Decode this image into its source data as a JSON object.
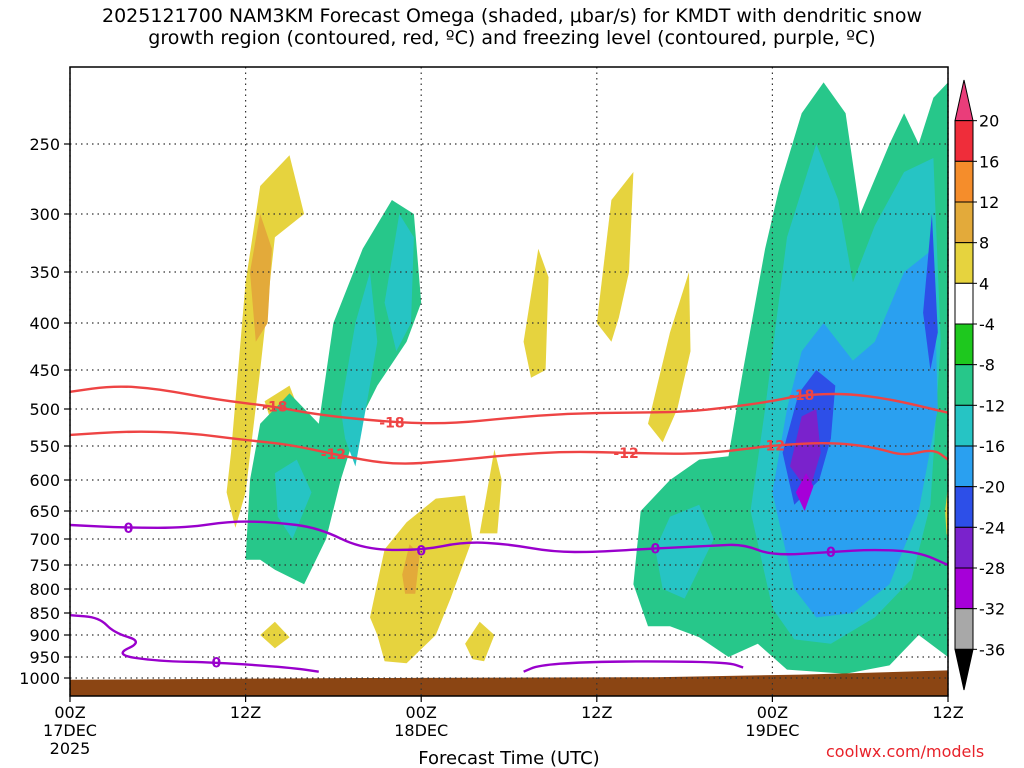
{
  "title_line1": "2025121700 NAM3KM Forecast Omega (shaded, μbar/s) for KMDT with dendritic snow",
  "title_line2": "growth region (contoured, red, ºC) and freezing level (contoured, purple, ºC)",
  "credit": "coolwx.com/models",
  "colors": {
    "terrain": "#8b4513",
    "dgz_contour": "#ee4444",
    "freezing_contour": "#9900cc",
    "grid": "#333333"
  },
  "chart_data": {
    "type": "heatmap",
    "xlabel": "Forecast Time (UTC)",
    "ylabel": "",
    "x_ticks": [
      {
        "hours": 0,
        "label": "00Z",
        "sub": "17DEC",
        "sub2": "2025"
      },
      {
        "hours": 12,
        "label": "12Z",
        "sub": "",
        "sub2": ""
      },
      {
        "hours": 24,
        "label": "00Z",
        "sub": "18DEC",
        "sub2": ""
      },
      {
        "hours": 36,
        "label": "12Z",
        "sub": "",
        "sub2": ""
      },
      {
        "hours": 48,
        "label": "00Z",
        "sub": "19DEC",
        "sub2": ""
      },
      {
        "hours": 60,
        "label": "12Z",
        "sub": "",
        "sub2": ""
      }
    ],
    "xlim": [
      0,
      60
    ],
    "y_ticks": [
      250,
      300,
      350,
      400,
      450,
      500,
      550,
      600,
      650,
      700,
      750,
      800,
      850,
      900,
      950,
      1000
    ],
    "ylim": [
      1020,
      200
    ],
    "colorbar": {
      "ticks": [
        20,
        16,
        12,
        8,
        4,
        -4,
        -8,
        -12,
        -16,
        -20,
        -24,
        -28,
        -32,
        -36
      ],
      "colors": [
        "#ea3d7a",
        "#ef2d3a",
        "#f58d2b",
        "#e3aa3a",
        "#e6d33e",
        "#ffffff",
        "#1ec81e",
        "#27c78a",
        "#26c4c4",
        "#2aa0f0",
        "#2d4fe8",
        "#7a22cc",
        "#a600d8",
        "#a8a8a8",
        "#000000"
      ]
    },
    "dgz_contours": [
      {
        "level": -18,
        "label": "-18",
        "points": [
          [
            0,
            478
          ],
          [
            3,
            470
          ],
          [
            6,
            474
          ],
          [
            10,
            488
          ],
          [
            14,
            497
          ],
          [
            17,
            508
          ],
          [
            22,
            518
          ],
          [
            26,
            520
          ],
          [
            30,
            512
          ],
          [
            34,
            506
          ],
          [
            38,
            505
          ],
          [
            42,
            504
          ],
          [
            45,
            498
          ],
          [
            48,
            490
          ],
          [
            50,
            482
          ],
          [
            53,
            480
          ],
          [
            56,
            487
          ],
          [
            60,
            505
          ]
        ]
      },
      {
        "level": -12,
        "label": "-12",
        "points": [
          [
            0,
            535
          ],
          [
            4,
            530
          ],
          [
            8,
            532
          ],
          [
            12,
            542
          ],
          [
            15,
            548
          ],
          [
            18,
            562
          ],
          [
            22,
            578
          ],
          [
            26,
            572
          ],
          [
            30,
            563
          ],
          [
            34,
            558
          ],
          [
            38,
            560
          ],
          [
            42,
            562
          ],
          [
            45,
            558
          ],
          [
            48,
            549
          ],
          [
            52,
            545
          ],
          [
            55,
            552
          ],
          [
            57,
            565
          ],
          [
            59,
            554
          ],
          [
            60,
            570
          ]
        ]
      }
    ],
    "freezing_contours": [
      {
        "level": 0,
        "label": "0",
        "points": [
          [
            0,
            675
          ],
          [
            4,
            680
          ],
          [
            8,
            680
          ],
          [
            11,
            668
          ],
          [
            14,
            670
          ],
          [
            17,
            680
          ],
          [
            20,
            720
          ],
          [
            24,
            722
          ],
          [
            27,
            705
          ],
          [
            30,
            710
          ],
          [
            33,
            725
          ],
          [
            36,
            725
          ],
          [
            40,
            718
          ],
          [
            44,
            713
          ],
          [
            46,
            710
          ],
          [
            48,
            732
          ],
          [
            52,
            725
          ],
          [
            55,
            720
          ],
          [
            58,
            725
          ],
          [
            60,
            750
          ]
        ]
      },
      {
        "level": 0,
        "label": "0",
        "points": [
          [
            0,
            855
          ],
          [
            2,
            860
          ],
          [
            3,
            895
          ],
          [
            5,
            915
          ],
          [
            3,
            945
          ],
          [
            6,
            960
          ],
          [
            10,
            963
          ],
          [
            15,
            975
          ],
          [
            17,
            985
          ]
        ]
      },
      {
        "level": 0,
        "label": "0",
        "points": [
          [
            31,
            985
          ],
          [
            32,
            970
          ],
          [
            35,
            962
          ],
          [
            40,
            960
          ],
          [
            45,
            963
          ],
          [
            46,
            975
          ]
        ]
      }
    ],
    "omega_regions": [
      {
        "value": 4,
        "points": [
          [
            11,
            560
          ],
          [
            12,
            360
          ],
          [
            13,
            280
          ],
          [
            15,
            258
          ],
          [
            16,
            300
          ],
          [
            14,
            320
          ],
          [
            13,
            450
          ],
          [
            12,
            620
          ],
          [
            11.3,
            680
          ],
          [
            10.7,
            620
          ]
        ]
      },
      {
        "value": 8,
        "points": [
          [
            12.3,
            350
          ],
          [
            13,
            300
          ],
          [
            13.8,
            330
          ],
          [
            13.5,
            400
          ],
          [
            12.7,
            420
          ]
        ]
      },
      {
        "value": 4,
        "points": [
          [
            13.3,
            490
          ],
          [
            15,
            470
          ],
          [
            16,
            520
          ],
          [
            15.5,
            560
          ],
          [
            14.5,
            545
          ],
          [
            13.8,
            520
          ]
        ]
      },
      {
        "value": -8,
        "points": [
          [
            12,
            740
          ],
          [
            12.3,
            600
          ],
          [
            13,
            520
          ],
          [
            15,
            480
          ],
          [
            17,
            520
          ],
          [
            18,
            400
          ],
          [
            20,
            330
          ],
          [
            22,
            290
          ],
          [
            23.5,
            300
          ],
          [
            24,
            380
          ],
          [
            23,
            420
          ],
          [
            21,
            470
          ],
          [
            19.7,
            520
          ],
          [
            18.5,
            600
          ],
          [
            17.5,
            700
          ],
          [
            16,
            790
          ],
          [
            14,
            760
          ],
          [
            13,
            740
          ]
        ]
      },
      {
        "value": -12,
        "points": [
          [
            18.5,
            500
          ],
          [
            19.5,
            400
          ],
          [
            20.5,
            350
          ],
          [
            21,
            420
          ],
          [
            20.4,
            480
          ],
          [
            19.5,
            580
          ],
          [
            18.8,
            540
          ]
        ]
      },
      {
        "value": -12,
        "points": [
          [
            21.5,
            380
          ],
          [
            22.5,
            300
          ],
          [
            23.5,
            320
          ],
          [
            23.3,
            400
          ],
          [
            22.3,
            430
          ]
        ]
      },
      {
        "value": -12,
        "points": [
          [
            14,
            590
          ],
          [
            15.5,
            570
          ],
          [
            16.5,
            620
          ],
          [
            15.2,
            700
          ],
          [
            14.2,
            660
          ]
        ]
      },
      {
        "value": 4,
        "points": [
          [
            20.5,
            860
          ],
          [
            21.5,
            720
          ],
          [
            23,
            670
          ],
          [
            25,
            630
          ],
          [
            27,
            625
          ],
          [
            27.5,
            700
          ],
          [
            26,
            820
          ],
          [
            25,
            900
          ],
          [
            23,
            965
          ],
          [
            21.5,
            960
          ],
          [
            21,
            900
          ]
        ]
      },
      {
        "value": 8,
        "points": [
          [
            22.7,
            770
          ],
          [
            23.2,
            710
          ],
          [
            23.9,
            730
          ],
          [
            23.6,
            810
          ],
          [
            22.9,
            810
          ]
        ]
      },
      {
        "value": 4,
        "points": [
          [
            28,
            690
          ],
          [
            29,
            555
          ],
          [
            29.5,
            600
          ],
          [
            29.2,
            690
          ]
        ]
      },
      {
        "value": 4,
        "points": [
          [
            31,
            420
          ],
          [
            32,
            330
          ],
          [
            32.7,
            355
          ],
          [
            32.5,
            450
          ],
          [
            31.5,
            460
          ]
        ]
      },
      {
        "value": 4,
        "points": [
          [
            36,
            400
          ],
          [
            37,
            290
          ],
          [
            38.5,
            270
          ],
          [
            38.2,
            350
          ],
          [
            37.5,
            395
          ],
          [
            37,
            420
          ]
        ]
      },
      {
        "value": 4,
        "points": [
          [
            39.5,
            520
          ],
          [
            41,
            410
          ],
          [
            42.3,
            350
          ],
          [
            42.4,
            430
          ],
          [
            41.5,
            500
          ],
          [
            40.5,
            545
          ]
        ]
      },
      {
        "value": 4,
        "points": [
          [
            27,
            920
          ],
          [
            28,
            870
          ],
          [
            29,
            900
          ],
          [
            28.3,
            960
          ],
          [
            27.5,
            955
          ]
        ]
      },
      {
        "value": 4,
        "points": [
          [
            13,
            900
          ],
          [
            14,
            870
          ],
          [
            15,
            905
          ],
          [
            14,
            930
          ]
        ]
      },
      {
        "value": -8,
        "points": [
          [
            38.5,
            790
          ],
          [
            39,
            650
          ],
          [
            41,
            600
          ],
          [
            43,
            570
          ],
          [
            45,
            565
          ],
          [
            46,
            450
          ],
          [
            47.5,
            330
          ],
          [
            48.5,
            280
          ],
          [
            50,
            230
          ],
          [
            51.5,
            210
          ],
          [
            53,
            230
          ],
          [
            54,
            300
          ],
          [
            56,
            250
          ],
          [
            57,
            230
          ],
          [
            58,
            250
          ],
          [
            59,
            220
          ],
          [
            60,
            210
          ],
          [
            60,
            950
          ],
          [
            58,
            900
          ],
          [
            56,
            970
          ],
          [
            53,
            990
          ],
          [
            49,
            980
          ],
          [
            47,
            920
          ],
          [
            45,
            950
          ],
          [
            43,
            905
          ],
          [
            41,
            880
          ],
          [
            39.5,
            880
          ]
        ]
      },
      {
        "value": -12,
        "points": [
          [
            40,
            720
          ],
          [
            41,
            660
          ],
          [
            43,
            640
          ],
          [
            44,
            700
          ],
          [
            42,
            820
          ],
          [
            40.5,
            800
          ]
        ]
      },
      {
        "value": -12,
        "points": [
          [
            46.5,
            650
          ],
          [
            47.5,
            500
          ],
          [
            49,
            320
          ],
          [
            51,
            250
          ],
          [
            52.5,
            290
          ],
          [
            53.5,
            360
          ],
          [
            55,
            310
          ],
          [
            57,
            270
          ],
          [
            59,
            260
          ],
          [
            59.5,
            420
          ],
          [
            58.8,
            640
          ],
          [
            57.5,
            780
          ],
          [
            55,
            860
          ],
          [
            52,
            920
          ],
          [
            49.5,
            910
          ],
          [
            48,
            840
          ]
        ]
      },
      {
        "value": -16,
        "points": [
          [
            48,
            620
          ],
          [
            49,
            500
          ],
          [
            50,
            430
          ],
          [
            51.5,
            400
          ],
          [
            53.5,
            440
          ],
          [
            55,
            420
          ],
          [
            57,
            350
          ],
          [
            59,
            330
          ],
          [
            59.3,
            500
          ],
          [
            58,
            650
          ],
          [
            56,
            790
          ],
          [
            53.5,
            850
          ],
          [
            51,
            860
          ],
          [
            49.5,
            800
          ]
        ]
      },
      {
        "value": -20,
        "points": [
          [
            48.7,
            560
          ],
          [
            49.8,
            480
          ],
          [
            51,
            450
          ],
          [
            52.3,
            470
          ],
          [
            52,
            540
          ],
          [
            51.2,
            600
          ],
          [
            49.5,
            640
          ]
        ]
      },
      {
        "value": -24,
        "points": [
          [
            49.2,
            580
          ],
          [
            50,
            510
          ],
          [
            51,
            500
          ],
          [
            51.3,
            560
          ],
          [
            50.5,
            620
          ]
        ]
      },
      {
        "value": -28,
        "points": [
          [
            49.6,
            620
          ],
          [
            50.3,
            590
          ],
          [
            50.8,
            610
          ],
          [
            50.2,
            650
          ]
        ]
      },
      {
        "value": -20,
        "points": [
          [
            58.3,
            390
          ],
          [
            58.9,
            300
          ],
          [
            59.3,
            410
          ],
          [
            58.8,
            450
          ]
        ]
      },
      {
        "value": 4,
        "points": [
          [
            59.8,
            650
          ],
          [
            60,
            610
          ],
          [
            60,
            700
          ],
          [
            59.9,
            690
          ]
        ]
      }
    ]
  }
}
